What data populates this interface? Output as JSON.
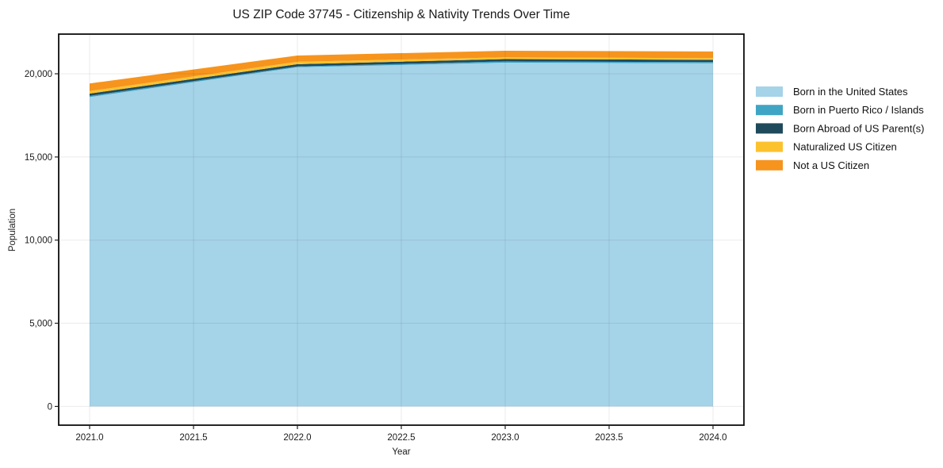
{
  "title": "US ZIP Code 37745 - Citizenship & Nativity Trends Over Time",
  "chart_data": {
    "type": "area",
    "stacked": true,
    "title": "US ZIP Code 37745 - Citizenship & Nativity Trends Over Time",
    "xlabel": "Year",
    "ylabel": "Population",
    "x": [
      2021,
      2022,
      2023,
      2024
    ],
    "series": [
      {
        "name": "Born in the United States",
        "color": "#a5d3e8",
        "values": [
          18600,
          20390,
          20670,
          20630
        ]
      },
      {
        "name": "Born in Puerto Rico / Islands",
        "color": "#40a5c4",
        "values": [
          70,
          50,
          75,
          70
        ]
      },
      {
        "name": "Born Abroad of US Parent(s)",
        "color": "#1f4a5c",
        "values": [
          140,
          140,
          140,
          140
        ]
      },
      {
        "name": "Naturalized US Citizen",
        "color": "#fcc22e",
        "values": [
          150,
          140,
          110,
          100
        ]
      },
      {
        "name": "Not a US Citizen",
        "color": "#f6941e",
        "values": [
          460,
          380,
          390,
          400
        ]
      }
    ],
    "xticks": [
      2021.0,
      2021.5,
      2022.0,
      2022.5,
      2023.0,
      2023.5,
      2024.0
    ],
    "xtick_labels": [
      "2021.0",
      "2021.5",
      "2022.0",
      "2022.5",
      "2023.0",
      "2023.5",
      "2024.0"
    ],
    "yticks": [
      0,
      5000,
      10000,
      15000,
      20000
    ],
    "ytick_labels": [
      "0",
      "5,000",
      "10,000",
      "15,000",
      "20,000"
    ],
    "xlim": [
      2020.851,
      2024.149
    ],
    "ylim": [
      -1128,
      22386
    ],
    "grid": true,
    "legend_position": "right"
  }
}
